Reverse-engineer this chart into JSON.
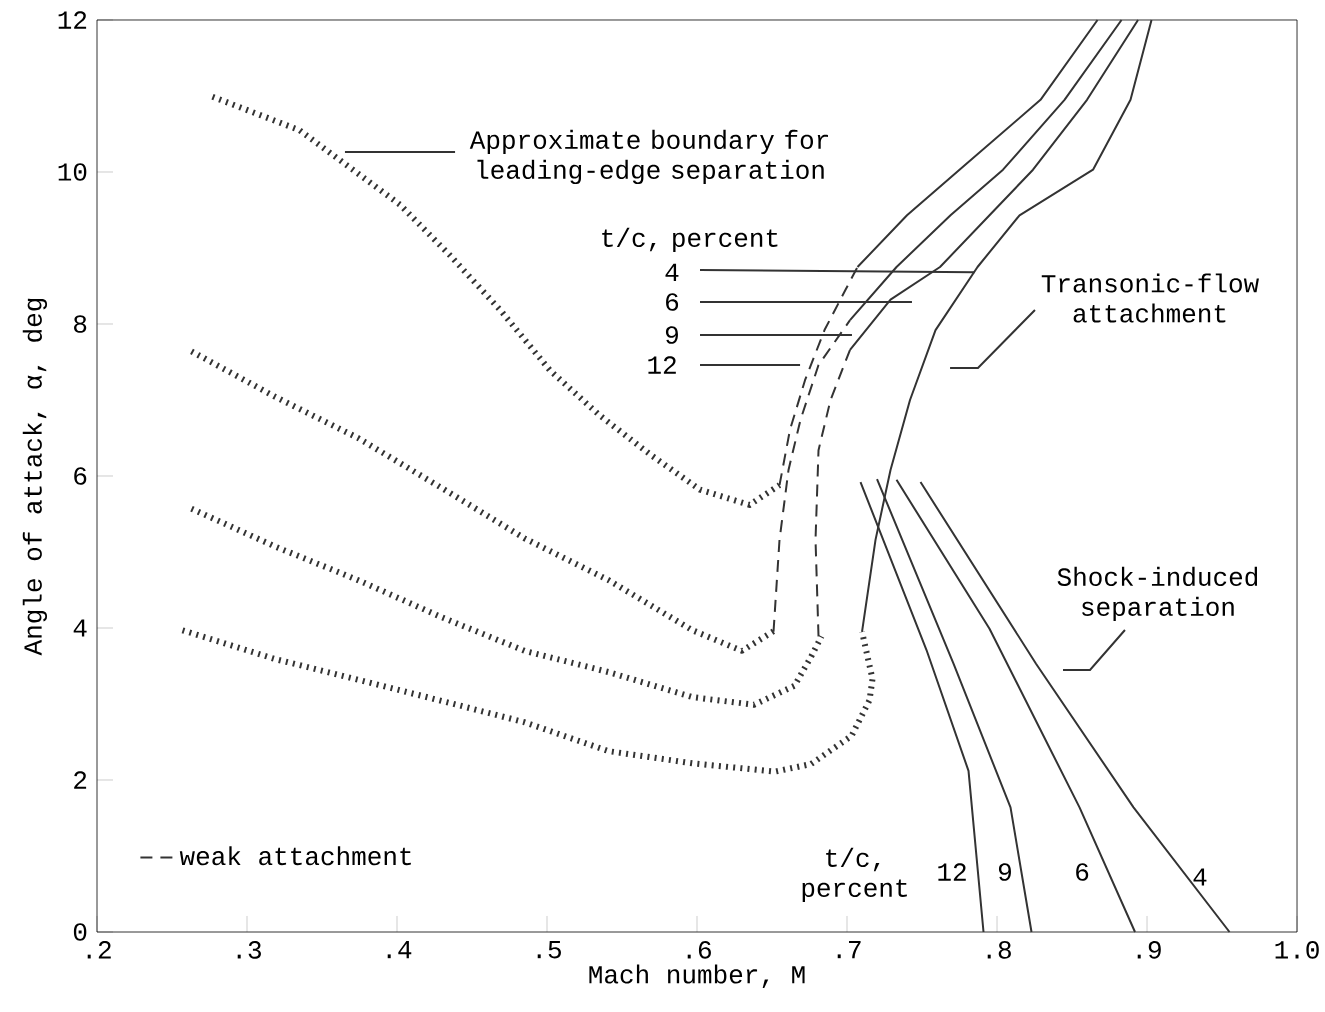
{
  "chart_data": {
    "type": "line",
    "xlabel": "Mach number, M",
    "ylabel": "Angle of attack, α, deg",
    "xlim": [
      0.2,
      1.0
    ],
    "ylim": [
      0,
      12
    ],
    "xticks": [
      {
        "value": 0.2,
        "label": ".2"
      },
      {
        "value": 0.3,
        "label": ".3"
      },
      {
        "value": 0.4,
        "label": ".4"
      },
      {
        "value": 0.5,
        "label": ".5"
      },
      {
        "value": 0.6,
        "label": ".6"
      },
      {
        "value": 0.7,
        "label": ".7"
      },
      {
        "value": 0.8,
        "label": ".8"
      },
      {
        "value": 0.9,
        "label": ".9"
      },
      {
        "value": 1.0,
        "label": "1.0"
      }
    ],
    "yticks": [
      0,
      2,
      4,
      6,
      8,
      10,
      12
    ],
    "legend": "bottom left",
    "series": [
      {
        "color": "#333333",
        "line_style": "dotted",
        "x": [
          0.277,
          0.335,
          0.402,
          0.435,
          0.469,
          0.502,
          0.535,
          0.569,
          0.602,
          0.635,
          0.655
        ],
        "values": [
          10.99,
          10.55,
          9.57,
          8.91,
          8.18,
          7.39,
          6.8,
          6.28,
          5.82,
          5.62,
          5.88
        ]
      },
      {
        "color": "#333333",
        "line_style": "dotted",
        "x": [
          0.263,
          0.319,
          0.374,
          0.43,
          0.485,
          0.541,
          0.597,
          0.63,
          0.652
        ],
        "values": [
          7.64,
          7.04,
          6.5,
          5.84,
          5.18,
          4.63,
          3.97,
          3.7,
          3.97
        ]
      },
      {
        "color": "#333333",
        "line_style": "dotted",
        "x": [
          0.263,
          0.319,
          0.374,
          0.43,
          0.485,
          0.541,
          0.597,
          0.638,
          0.665,
          0.676,
          0.683
        ],
        "values": [
          5.57,
          5.07,
          4.63,
          4.14,
          3.7,
          3.42,
          3.09,
          2.99,
          3.24,
          3.62,
          3.89
        ]
      },
      {
        "color": "#333333",
        "line_style": "dotted",
        "x": [
          0.257,
          0.319,
          0.374,
          0.43,
          0.485,
          0.541,
          0.597,
          0.652,
          0.676,
          0.703,
          0.715,
          0.717,
          0.71
        ],
        "values": [
          3.97,
          3.59,
          3.32,
          3.04,
          2.76,
          2.38,
          2.22,
          2.11,
          2.21,
          2.58,
          3.05,
          3.33,
          3.95
        ]
      },
      {
        "name": "weak attachment",
        "color": "#333333",
        "line_style": "dashed",
        "x": [
          0.655,
          0.662,
          0.672,
          0.685,
          0.699,
          0.707
        ],
        "values": [
          5.88,
          6.61,
          7.26,
          7.92,
          8.45,
          8.75
        ]
      },
      {
        "color": "#333333",
        "line_style": "dashed",
        "x": [
          0.651,
          0.655,
          0.661,
          0.669,
          0.681,
          0.702
        ],
        "values": [
          3.95,
          5.16,
          6.08,
          6.74,
          7.46,
          8.05
        ]
      },
      {
        "color": "#333333",
        "line_style": "dashed",
        "x": [
          0.681,
          0.679,
          0.681,
          0.689,
          0.702
        ],
        "values": [
          3.89,
          5.16,
          6.34,
          7.0,
          7.66
        ]
      },
      {
        "color": "#333333",
        "line_style": "solid",
        "x": [
          0.707,
          0.74,
          0.775,
          0.829,
          0.867
        ],
        "values": [
          8.75,
          9.43,
          10.03,
          10.95,
          12
        ]
      },
      {
        "color": "#333333",
        "line_style": "solid",
        "x": [
          0.702,
          0.733,
          0.769,
          0.804,
          0.845,
          0.883
        ],
        "values": [
          8.05,
          8.75,
          9.43,
          10.03,
          10.95,
          12
        ]
      },
      {
        "color": "#333333",
        "line_style": "solid",
        "x": [
          0.702,
          0.729,
          0.762,
          0.795,
          0.824,
          0.86,
          0.894
        ],
        "values": [
          7.66,
          8.32,
          8.75,
          9.43,
          10.03,
          10.95,
          12
        ]
      },
      {
        "color": "#333333",
        "line_style": "solid",
        "x": [
          0.71,
          0.719,
          0.729,
          0.742,
          0.759,
          0.787,
          0.815,
          0.864,
          0.889,
          0.903
        ],
        "values": [
          3.95,
          5.16,
          6.08,
          7.0,
          7.92,
          8.75,
          9.43,
          10.03,
          10.95,
          12
        ]
      },
      {
        "color": "#333333",
        "line_style": "solid",
        "x": [
          0.709,
          0.753,
          0.781,
          0.791
        ],
        "values": [
          5.92,
          3.71,
          2.12,
          0
        ]
      },
      {
        "color": "#333333",
        "line_style": "solid",
        "x": [
          0.72,
          0.771,
          0.809,
          0.823
        ],
        "values": [
          5.96,
          3.53,
          1.64,
          0
        ]
      },
      {
        "color": "#333333",
        "line_style": "solid",
        "x": [
          0.733,
          0.795,
          0.855,
          0.892
        ],
        "values": [
          5.95,
          3.99,
          1.64,
          0
        ]
      },
      {
        "color": "#333333",
        "line_style": "solid",
        "x": [
          0.749,
          0.826,
          0.891,
          0.955
        ],
        "values": [
          5.92,
          3.53,
          1.64,
          0
        ]
      }
    ],
    "annotations": [
      "Approximate boundary for leading-edge separation",
      "t/c, percent",
      {
        "text": "4",
        "x": 0.785,
        "y": 8.68
      },
      "6",
      "9",
      "12",
      "Transonic-flow attachment",
      "Shock-induced separation",
      "t/c, percent",
      "12",
      "9",
      "6",
      "4"
    ]
  }
}
